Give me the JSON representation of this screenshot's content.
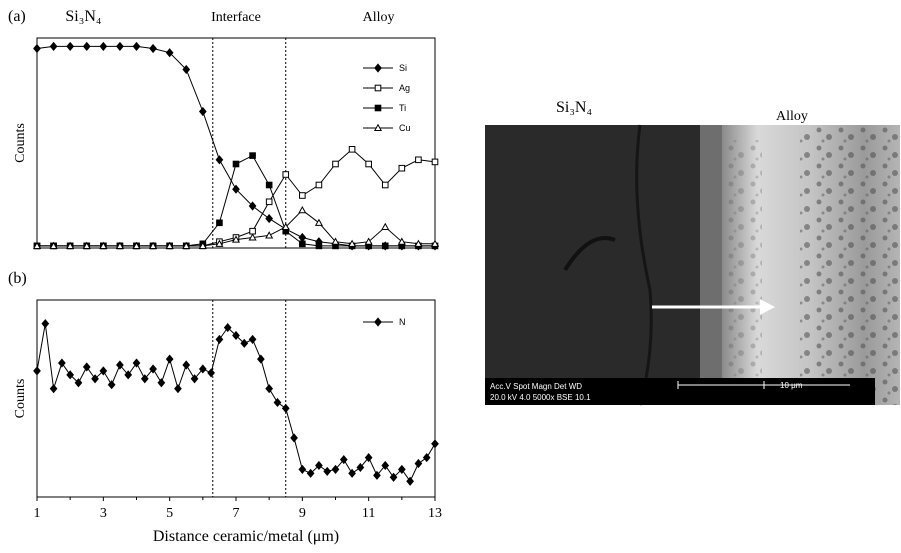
{
  "chart_data": [
    {
      "type": "line",
      "panel": "(a)",
      "ylabel": "Counts",
      "annotations": [
        "Si₃N₄",
        "Interface",
        "Alloy"
      ],
      "interface_lines": [
        6.3,
        8.5
      ],
      "legend": "upper right",
      "xlim": [
        1,
        13
      ],
      "ylim": [
        0,
        100
      ],
      "x": [
        1,
        1.5,
        2,
        2.5,
        3,
        3.5,
        4,
        4.5,
        5,
        5.5,
        6,
        6.5,
        7,
        7.5,
        8,
        8.5,
        9,
        9.5,
        10,
        10.5,
        11,
        11.5,
        12,
        12.5,
        13
      ],
      "series": [
        {
          "name": "Si",
          "color": "#000000",
          "marker": "diamond-filled",
          "values": [
            95,
            96,
            96,
            96,
            96,
            96,
            96,
            95,
            93,
            85,
            65,
            42,
            28,
            20,
            14,
            9,
            5,
            3,
            2,
            1,
            1,
            1,
            1,
            1,
            1
          ]
        },
        {
          "name": "Ag",
          "color": "#000000",
          "marker": "square-open",
          "values": [
            1,
            1,
            1,
            1,
            1,
            1,
            1,
            1,
            1,
            1,
            1,
            3,
            5,
            8,
            22,
            35,
            25,
            30,
            40,
            47,
            40,
            30,
            38,
            42,
            41
          ]
        },
        {
          "name": "Ti",
          "color": "#000000",
          "marker": "square-filled",
          "values": [
            1,
            1,
            1,
            1,
            1,
            1,
            1,
            1,
            1,
            1,
            2,
            12,
            40,
            44,
            30,
            8,
            2,
            1,
            1,
            1,
            1,
            1,
            1,
            1,
            1
          ]
        },
        {
          "name": "Cu",
          "color": "#000000",
          "marker": "triangle-open",
          "values": [
            1,
            1,
            1,
            1,
            1,
            1,
            1,
            1,
            1,
            1,
            1,
            2,
            4,
            5,
            6,
            10,
            18,
            12,
            3,
            2,
            3,
            10,
            3,
            2,
            2
          ]
        }
      ]
    },
    {
      "type": "line",
      "panel": "(b)",
      "ylabel": "Counts",
      "xlabel": "Distance ceramic/metal (μm)",
      "interface_lines": [
        6.3,
        8.5
      ],
      "legend": "upper right",
      "xlim": [
        1,
        13
      ],
      "ylim": [
        0,
        100
      ],
      "xticks": [
        1,
        3,
        5,
        7,
        9,
        11,
        13
      ],
      "x": [
        1,
        1.25,
        1.5,
        1.75,
        2,
        2.25,
        2.5,
        2.75,
        3,
        3.25,
        3.5,
        3.75,
        4,
        4.25,
        4.5,
        4.75,
        5,
        5.25,
        5.5,
        5.75,
        6,
        6.25,
        6.5,
        6.75,
        7,
        7.25,
        7.5,
        7.75,
        8,
        8.25,
        8.5,
        8.75,
        9,
        9.25,
        9.5,
        9.75,
        10,
        10.25,
        10.5,
        10.75,
        11,
        11.25,
        11.5,
        11.75,
        12,
        12.25,
        12.5,
        12.75,
        13
      ],
      "series": [
        {
          "name": "N",
          "color": "#000000",
          "marker": "diamond-filled",
          "values": [
            64,
            88,
            55,
            68,
            62,
            58,
            66,
            60,
            64,
            57,
            67,
            62,
            68,
            60,
            65,
            58,
            70,
            55,
            67,
            60,
            65,
            63,
            80,
            86,
            82,
            78,
            80,
            70,
            55,
            48,
            45,
            30,
            14,
            12,
            16,
            13,
            14,
            19,
            12,
            15,
            20,
            11,
            16,
            10,
            14,
            8,
            17,
            20,
            27
          ]
        }
      ]
    }
  ],
  "sem_image": {
    "labels": [
      "Si₃N₄",
      "Alloy"
    ],
    "info_bar": {
      "header": "Acc.V  Spot Magn    Det  WD",
      "values": "20.0 kV 4.0   5000x    BSE 10.1",
      "scale": "10 μm"
    }
  }
}
